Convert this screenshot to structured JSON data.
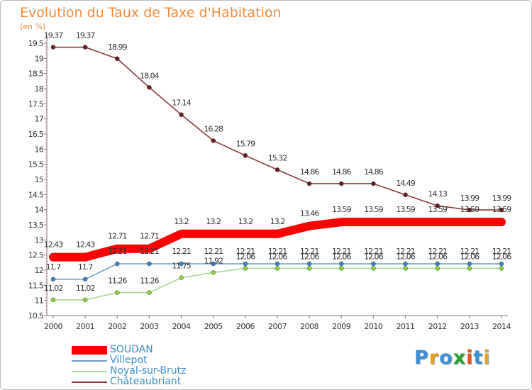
{
  "chart_data": {
    "type": "line",
    "title": "Evolution du Taux de Taxe d'Habitation",
    "ylabel": "(en %)",
    "xlabel": "",
    "x": [
      "2000",
      "2001",
      "2002",
      "2003",
      "2004",
      "2005",
      "2006",
      "2007",
      "2008",
      "2009",
      "2010",
      "2011",
      "2012",
      "2013",
      "2014"
    ],
    "ylim": [
      10.5,
      19.5
    ],
    "yticks": [
      "10.5",
      "11",
      "11.5",
      "12",
      "12.5",
      "13",
      "13.5",
      "14",
      "14.5",
      "15",
      "15.5",
      "16",
      "16.5",
      "17",
      "17.5",
      "18",
      "18.5",
      "19",
      "19.5"
    ],
    "grid": false,
    "legend_position": "bottom-left",
    "series": [
      {
        "name": "SOUDAN",
        "color": "#ff0000",
        "values": [
          12.43,
          12.43,
          12.71,
          12.71,
          13.2,
          13.2,
          13.2,
          13.2,
          13.46,
          13.59,
          13.59,
          13.59,
          13.59,
          13.59,
          13.59
        ],
        "labels": [
          "12.43",
          "12.43",
          "12.71",
          "12.71",
          "13.2",
          "13.2",
          "13.2",
          "13.2",
          "13.46",
          "13.59",
          "13.59",
          "13.59",
          "13.59",
          "13.59",
          "13.59"
        ]
      },
      {
        "name": "Villepot",
        "color": "#6f9fc8",
        "marker_color": "#3b80c8",
        "values": [
          11.7,
          11.7,
          12.21,
          12.21,
          12.21,
          12.21,
          12.21,
          12.21,
          12.21,
          12.21,
          12.21,
          12.21,
          12.21,
          12.21,
          12.21
        ],
        "labels": [
          "11.7",
          "11.7",
          "12.21",
          "12.21",
          "12.21",
          "12.21",
          "12.21",
          "12.21",
          "12.21",
          "12.21",
          "12.21",
          "12.21",
          "12.21",
          "12.21",
          "12.21"
        ]
      },
      {
        "name": "Noyal-sur-Brutz",
        "color": "#a8d890",
        "marker_color": "#8ad43c",
        "values": [
          11.02,
          11.02,
          11.26,
          11.26,
          11.75,
          11.92,
          12.06,
          12.06,
          12.06,
          12.06,
          12.06,
          12.06,
          12.06,
          12.06,
          12.06
        ],
        "labels": [
          "11.02",
          "11.02",
          "11.26",
          "11.26",
          "11.75",
          "11.92",
          "12.06",
          "12.06",
          "12.06",
          "12.06",
          "12.06",
          "12.06",
          "12.06",
          "12.06",
          "12.06"
        ]
      },
      {
        "name": "Châteaubriant",
        "color": "#8a3a3a",
        "marker_color": "#6a1818",
        "values": [
          19.37,
          19.37,
          18.99,
          18.04,
          17.14,
          16.28,
          15.79,
          15.32,
          14.86,
          14.86,
          14.86,
          14.49,
          14.13,
          13.99,
          13.99
        ],
        "labels": [
          "19.37",
          "19.37",
          "18.99",
          "18.04",
          "17.14",
          "16.28",
          "15.79",
          "15.32",
          "14.86",
          "14.86",
          "14.86",
          "14.49",
          "14.13",
          "13.99",
          "13.99"
        ]
      }
    ]
  },
  "logo": {
    "text": "Proxiti",
    "letters": [
      "P",
      "r",
      "o",
      "x",
      "i",
      "t",
      "i"
    ],
    "colors": [
      "#3b8fd6",
      "#e8a020",
      "#3b8fd6",
      "#2aa02a",
      "#e85020",
      "#3b8fd6",
      "#e8a020"
    ]
  }
}
